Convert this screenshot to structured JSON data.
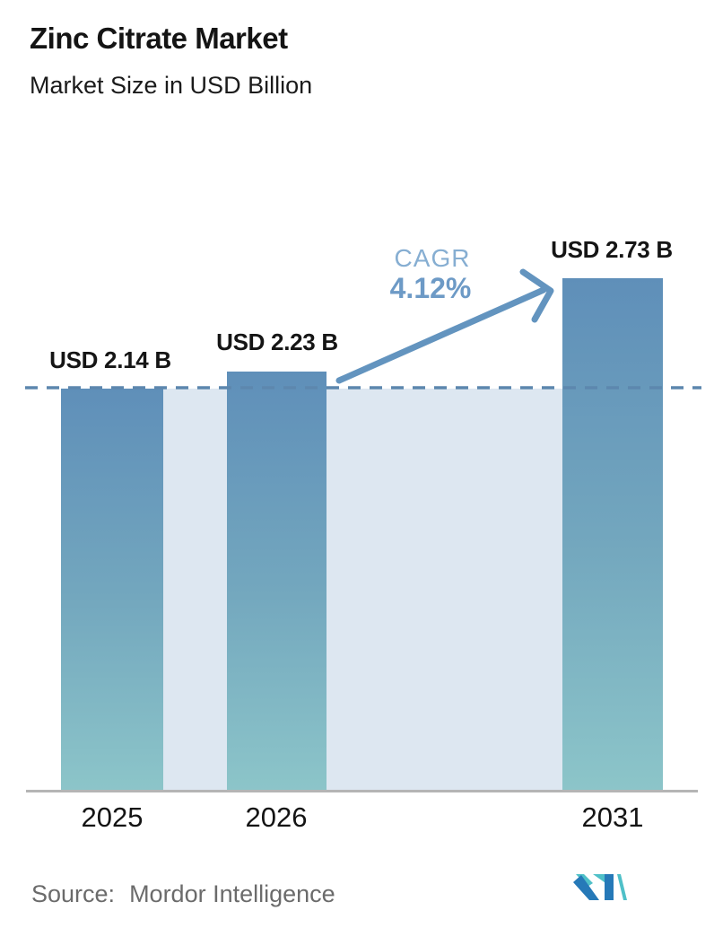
{
  "header": {
    "title": "Zinc Citrate Market",
    "subtitle": "Market Size in USD Billion"
  },
  "chart_data": {
    "type": "bar",
    "title": "Zinc Citrate Market",
    "subtitle": "Market Size in USD Billion",
    "unit": "USD Billion",
    "categories": [
      "2025",
      "2026",
      "2031"
    ],
    "values": [
      2.14,
      2.23,
      2.73
    ],
    "value_labels": [
      "USD 2.14 B",
      "USD 2.23 B",
      "USD 2.73 B"
    ],
    "cagr_label": "CAGR",
    "cagr_value": "4.12%",
    "reference_line_value": 2.14,
    "ylim": [
      0,
      2.9
    ],
    "grid": false,
    "legend": false,
    "annotation": "arrow from 2026 bar to 2031 bar indicating CAGR growth"
  },
  "footer": {
    "source_label": "Source:",
    "source_value": "Mordor Intelligence",
    "logo": "mordor-intelligence-logo"
  },
  "colors": {
    "bar_gradient_top": "#5f8fb9",
    "bar_gradient_bottom": "#8cc5c9",
    "plot_band": "#dde7f1",
    "dashed_line": "#5d87ae",
    "arrow": "#6394bf",
    "cagr_label_text": "#86aed2",
    "cagr_value_text": "#6d9ac6",
    "baseline": "#b5b5b5",
    "source_text": "#6b6b6b",
    "logo_teal": "#4fc0c8",
    "logo_blue": "#2679b8"
  }
}
